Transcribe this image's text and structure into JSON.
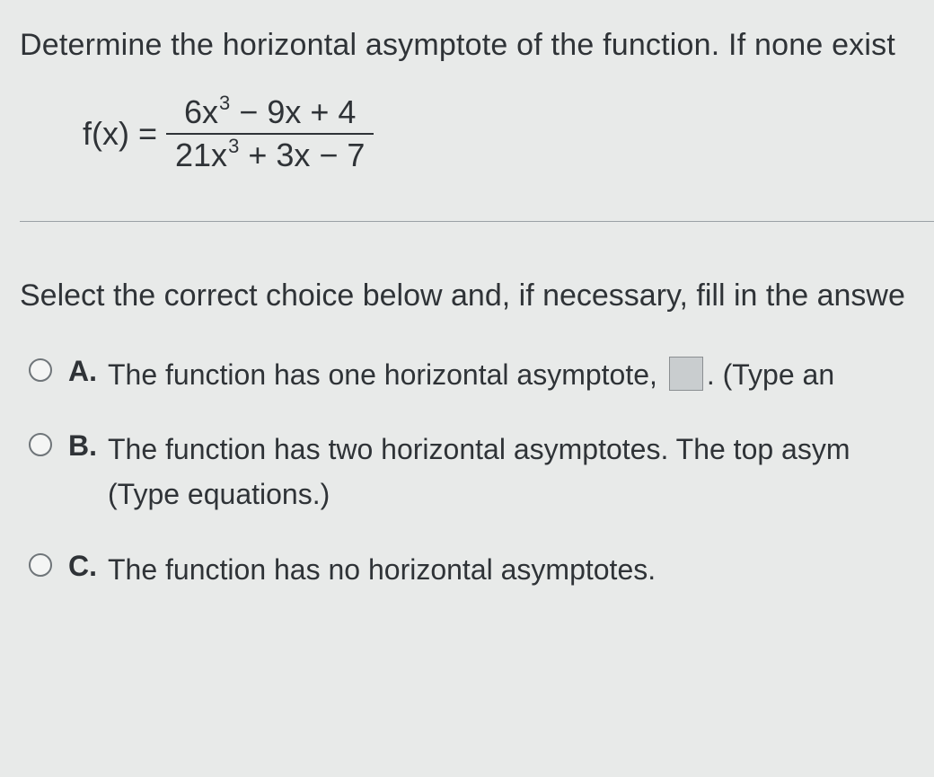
{
  "question": {
    "prompt": "Determine the horizontal asymptote of the function. If none exist",
    "formula": {
      "lhs": "f(x) =",
      "numerator_a": "6x",
      "numerator_exp": "3",
      "numerator_b": " − 9x + 4",
      "denominator_a": "21x",
      "denominator_exp": "3",
      "denominator_b": " + 3x − 7"
    }
  },
  "instruction": "Select the correct choice below and, if necessary, fill in the answe",
  "choices": {
    "a": {
      "label": "A.",
      "text_before": "The function has one horizontal asymptote, ",
      "text_after": ". (Type an "
    },
    "b": {
      "label": "B.",
      "line1": "The function has two horizontal asymptotes. The top asym",
      "line2": "(Type equations.)"
    },
    "c": {
      "label": "C.",
      "text": "The function has no horizontal asymptotes."
    }
  },
  "colors": {
    "background": "#e8eae9",
    "text": "#2f3337",
    "divider": "#9aa1a6",
    "radio_border": "#6f7579",
    "box_border": "#8b8f92",
    "box_fill": "#c9cdcf"
  },
  "typography": {
    "body_fontsize_pt": 26,
    "formula_fontsize_pt": 27,
    "choice_fontsize_pt": 24
  }
}
